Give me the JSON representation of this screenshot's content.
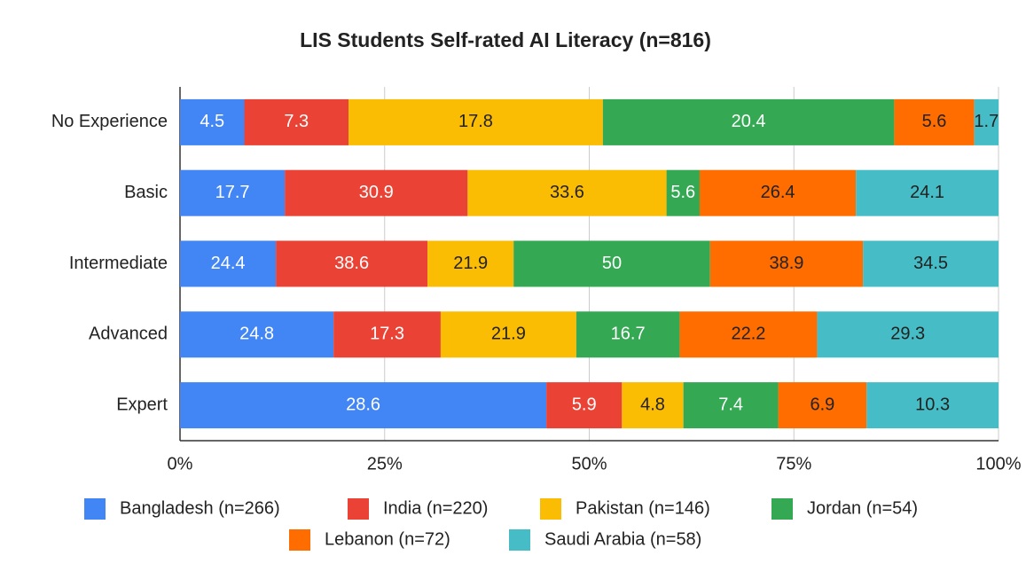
{
  "chart_data": {
    "type": "bar",
    "orientation": "horizontal",
    "stacked": "percent",
    "title": "LIS Students Self-rated AI Literacy (n=816)",
    "categories": [
      "No Experience",
      "Basic",
      "Intermediate",
      "Advanced",
      "Expert"
    ],
    "series": [
      {
        "name": "Bangladesh (n=266)",
        "color": "#4285f4",
        "values": [
          4.5,
          17.7,
          24.4,
          24.8,
          28.6
        ]
      },
      {
        "name": "India (n=220)",
        "color": "#ea4335",
        "values": [
          7.3,
          30.9,
          38.6,
          17.3,
          5.9
        ]
      },
      {
        "name": "Pakistan (n=146)",
        "color": "#fbbc04",
        "values": [
          17.8,
          33.6,
          21.9,
          21.9,
          4.8
        ]
      },
      {
        "name": "Jordan (n=54)",
        "color": "#34a853",
        "values": [
          20.4,
          5.6,
          50,
          16.7,
          7.4
        ]
      },
      {
        "name": "Lebanon (n=72)",
        "color": "#ff6d01",
        "values": [
          5.6,
          26.4,
          38.9,
          22.2,
          6.9
        ]
      },
      {
        "name": "Saudi Arabia (n=58)",
        "color": "#46bdc6",
        "values": [
          1.7,
          24.1,
          34.5,
          29.3,
          10.3
        ]
      }
    ],
    "xlim": [
      0,
      100
    ],
    "xticks": [
      {
        "value": 0,
        "label": "0%"
      },
      {
        "value": 25,
        "label": "25%"
      },
      {
        "value": 50,
        "label": "50%"
      },
      {
        "value": 75,
        "label": "75%"
      },
      {
        "value": 100,
        "label": "100%"
      }
    ],
    "grid": true,
    "legend": "bottom"
  }
}
